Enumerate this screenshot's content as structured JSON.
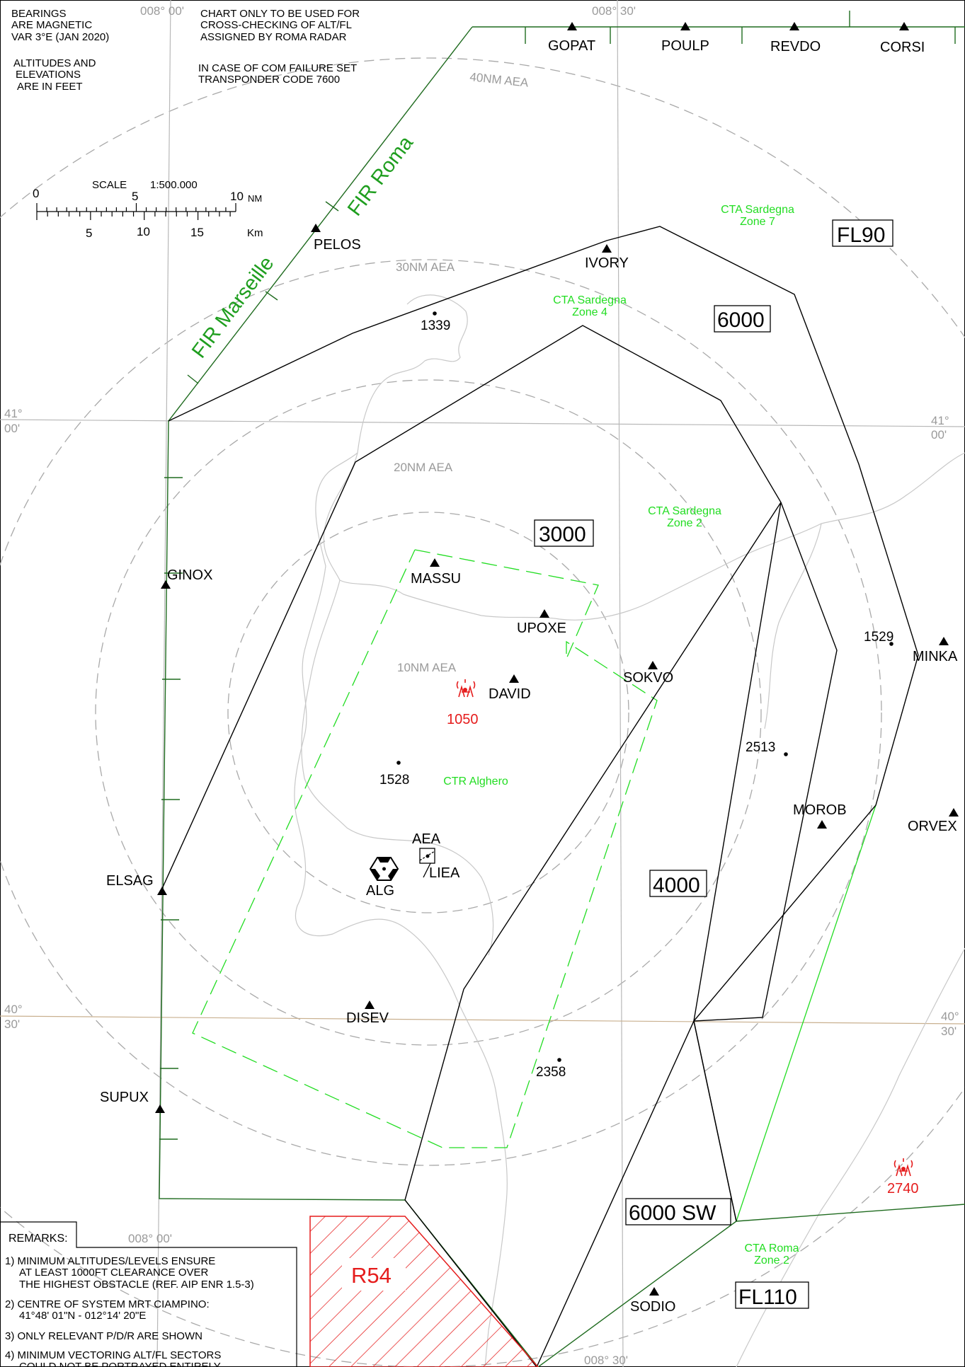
{
  "header": {
    "bearings": [
      "BEARINGS",
      "ARE MAGNETIC",
      "VAR 3°E (JAN 2020)"
    ],
    "altitudes": [
      "ALTITUDES AND",
      "ELEVATIONS",
      "ARE IN FEET"
    ],
    "usage": [
      "CHART ONLY TO BE USED FOR",
      "CROSS-CHECKING OF ALT/FL",
      "ASSIGNED BY ROMA RADAR"
    ],
    "comfail": [
      "IN CASE OF COM FAILURE SET",
      "TRANSPONDER CODE 7600"
    ]
  },
  "scale": {
    "title": "SCALE",
    "ratio": "1:500.000",
    "nm_labels": [
      "0",
      "5",
      "10"
    ],
    "nm_unit": "NM",
    "km_labels": [
      "5",
      "10",
      "15"
    ],
    "km_unit": "Km"
  },
  "graticule": {
    "lon_0800": "008° 00'",
    "lon_0830": "008° 30'",
    "lat_4100_deg": "41°",
    "lat_4100_min": "00'",
    "lat_4030_deg": "40°",
    "lat_4030_min": "30'"
  },
  "aea_rings": [
    "40NM AEA",
    "30NM AEA",
    "20NM AEA",
    "10NM AEA"
  ],
  "fir": {
    "marseille": "FIR  Marseille",
    "roma": "FIR Roma"
  },
  "waypoints": [
    "GOPAT",
    "POULP",
    "REVDO",
    "CORSI",
    "PELOS",
    "IVORY",
    "GINOX",
    "MASSU",
    "UPOXE",
    "SOKVO",
    "DAVID",
    "MINKA",
    "MOROB",
    "ORVEX",
    "ELSAG",
    "DISEV",
    "SUPUX",
    "SODIO"
  ],
  "elevations": [
    "1339",
    "1529",
    "2513",
    "1528",
    "2358"
  ],
  "obstacles": [
    "1050",
    "2740"
  ],
  "cta_labels": {
    "zone7": [
      "CTA Sardegna",
      "Zone 7"
    ],
    "zone4": [
      "CTA Sardegna",
      "Zone 4"
    ],
    "zone2": [
      "CTA Sardegna",
      "Zone 2"
    ],
    "roma2": [
      "CTA Roma",
      "Zone 2"
    ],
    "ctr": "CTR Alghero"
  },
  "altitude_boxes": [
    "FL90",
    "6000",
    "3000",
    "4000",
    "6000 SW",
    "FL110"
  ],
  "airport": {
    "aea": "AEA",
    "icao": "LIEA",
    "vor": "ALG"
  },
  "restricted_area": "R54",
  "remarks": {
    "title": "REMARKS:",
    "lines": [
      "1) MINIMUM ALTITUDES/LEVELS ENSURE",
      "AT LEAST 1000FT CLEARANCE OVER",
      "THE HIGHEST OBSTACLE (REF. AIP ENR 1.5-3)",
      "2) CENTRE OF SYSTEM MRT CIAMPINO:",
      "41°48' 01\"N - 012°14' 20\"E",
      "3) ONLY RELEVANT P/D/R ARE SHOWN",
      "4) MINIMUM VECTORING ALT/FL SECTORS",
      "COULD NOT BE PORTRAYED ENTIRELY"
    ]
  },
  "colors": {
    "sector": "#000000",
    "fir_border": "#1f6b1f",
    "cta": "#22dd22",
    "ring": "#a9a9a9",
    "coast": "#c8c8c8",
    "obstacle": "#e51c1c"
  }
}
